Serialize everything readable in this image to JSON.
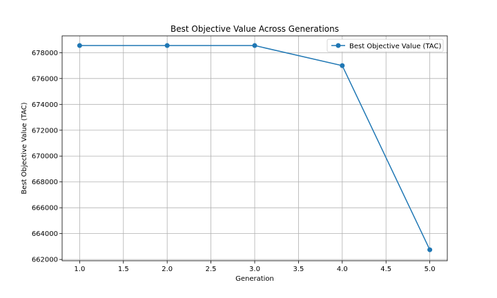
{
  "chart_data": {
    "type": "line",
    "title": "Best Objective Value Across Generations",
    "xlabel": "Generation",
    "ylabel": "Best Objective Value (TAC)",
    "x": [
      1.0,
      2.0,
      3.0,
      4.0,
      5.0
    ],
    "series": [
      {
        "name": "Best Objective Value (TAC)",
        "values": [
          678550,
          678550,
          678550,
          677000,
          662750
        ],
        "color": "#1f77b4"
      }
    ],
    "xlim": [
      0.8,
      5.2
    ],
    "ylim": [
      661900,
      679300
    ],
    "x_ticks": [
      "1.0",
      "1.5",
      "2.0",
      "2.5",
      "3.0",
      "3.5",
      "4.0",
      "4.5",
      "5.0"
    ],
    "y_ticks": [
      "662000",
      "664000",
      "666000",
      "668000",
      "670000",
      "672000",
      "674000",
      "676000",
      "678000"
    ],
    "grid": true,
    "legend_position": "top-right"
  }
}
